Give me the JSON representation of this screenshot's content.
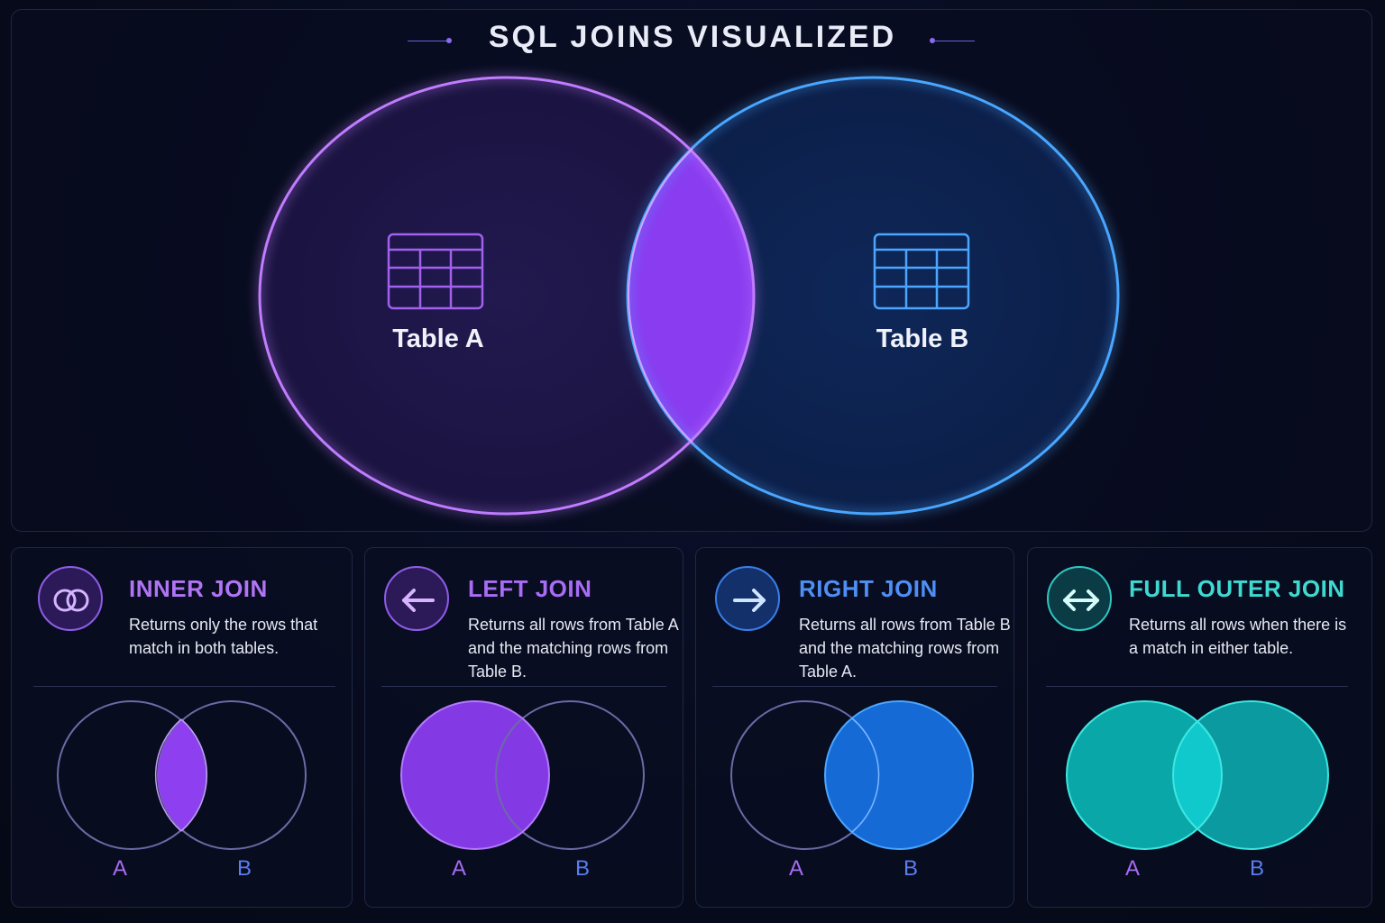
{
  "title": "SQL JOINS VISUALIZED",
  "hero": {
    "table_a": "Table A",
    "table_b": "Table B",
    "table_a_icon": "table-grid-icon",
    "table_b_icon": "table-grid-icon",
    "color_a": "#a25cf5",
    "color_b": "#3d9cff",
    "intersection_color": "#8a3df0"
  },
  "cards": [
    {
      "title": "INNER JOIN",
      "icon": "interlocking-rings-icon",
      "desc": "Returns only the rows that match in both tables.",
      "label_a": "A",
      "label_b": "B",
      "accent": "#b174f5"
    },
    {
      "title": "LEFT JOIN",
      "icon": "arrow-left-icon",
      "desc": "Returns all rows from Table A and the matching rows from Table B.",
      "label_a": "A",
      "label_b": "B",
      "accent": "#a86cf5"
    },
    {
      "title": "RIGHT JOIN",
      "icon": "arrow-right-icon",
      "desc": "Returns all rows from Table B and the matching rows from Table A.",
      "label_a": "A",
      "label_b": "B",
      "accent": "#4f8ff5"
    },
    {
      "title": "FULL OUTER JOIN",
      "icon": "double-arrow-icon",
      "desc": "Returns all rows when there is a match in either table.",
      "label_a": "A",
      "label_b": "B",
      "accent": "#3fd9d2"
    }
  ]
}
